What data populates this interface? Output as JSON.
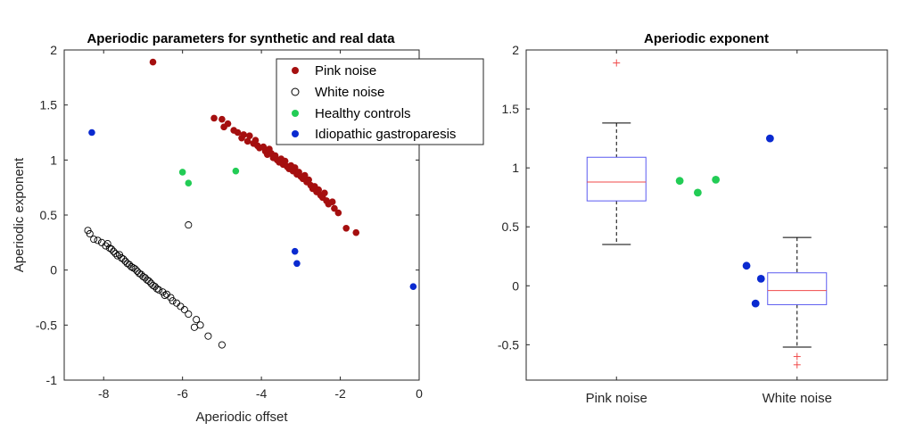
{
  "chart_data": [
    {
      "type": "scatter",
      "title": "Aperiodic parameters for synthetic and real data",
      "xlabel": "Aperiodic offset",
      "ylabel": "Aperiodic exponent",
      "xlim": [
        -9,
        0
      ],
      "ylim": [
        -1,
        2
      ],
      "xticks": [
        -8,
        -6,
        -4,
        -2,
        0
      ],
      "yticks": [
        -1,
        -0.5,
        0,
        0.5,
        1,
        1.5,
        2
      ],
      "xtick_labels": [
        "-8",
        "-6",
        "-4",
        "-2",
        "0"
      ],
      "ytick_labels": [
        "-1",
        "-0.5",
        "0",
        "0.5",
        "1",
        "1.5",
        "2"
      ],
      "grid": false,
      "legend_position": "top-right",
      "series": [
        {
          "name": "Pink noise",
          "color": "#a50f0f",
          "marker": "filled-circle",
          "points": [
            [
              -6.75,
              1.89
            ],
            [
              -5.2,
              1.38
            ],
            [
              -5.0,
              1.37
            ],
            [
              -4.95,
              1.3
            ],
            [
              -4.85,
              1.33
            ],
            [
              -4.7,
              1.27
            ],
            [
              -4.6,
              1.25
            ],
            [
              -4.5,
              1.2
            ],
            [
              -4.45,
              1.23
            ],
            [
              -4.35,
              1.17
            ],
            [
              -4.3,
              1.22
            ],
            [
              -4.2,
              1.15
            ],
            [
              -4.15,
              1.18
            ],
            [
              -4.1,
              1.13
            ],
            [
              -4.05,
              1.11
            ],
            [
              -3.95,
              1.12
            ],
            [
              -3.9,
              1.08
            ],
            [
              -3.85,
              1.05
            ],
            [
              -3.8,
              1.1
            ],
            [
              -3.75,
              1.06
            ],
            [
              -3.7,
              1.02
            ],
            [
              -3.65,
              1.04
            ],
            [
              -3.6,
              1.0
            ],
            [
              -3.55,
              0.98
            ],
            [
              -3.5,
              1.01
            ],
            [
              -3.45,
              0.96
            ],
            [
              -3.4,
              0.99
            ],
            [
              -3.35,
              0.94
            ],
            [
              -3.3,
              0.92
            ],
            [
              -3.25,
              0.95
            ],
            [
              -3.2,
              0.9
            ],
            [
              -3.15,
              0.93
            ],
            [
              -3.1,
              0.87
            ],
            [
              -3.05,
              0.89
            ],
            [
              -3.0,
              0.85
            ],
            [
              -2.95,
              0.83
            ],
            [
              -2.9,
              0.86
            ],
            [
              -2.85,
              0.8
            ],
            [
              -2.8,
              0.82
            ],
            [
              -2.75,
              0.77
            ],
            [
              -2.7,
              0.74
            ],
            [
              -2.65,
              0.76
            ],
            [
              -2.6,
              0.71
            ],
            [
              -2.55,
              0.73
            ],
            [
              -2.5,
              0.68
            ],
            [
              -2.45,
              0.66
            ],
            [
              -2.4,
              0.7
            ],
            [
              -2.35,
              0.63
            ],
            [
              -2.3,
              0.6
            ],
            [
              -2.2,
              0.62
            ],
            [
              -2.15,
              0.56
            ],
            [
              -2.05,
              0.52
            ],
            [
              -1.85,
              0.38
            ],
            [
              -1.6,
              0.34
            ]
          ]
        },
        {
          "name": "White noise",
          "color": "#000000",
          "marker": "open-circle",
          "points": [
            [
              -8.4,
              0.36
            ],
            [
              -8.35,
              0.33
            ],
            [
              -8.25,
              0.28
            ],
            [
              -8.15,
              0.27
            ],
            [
              -8.05,
              0.25
            ],
            [
              -7.95,
              0.22
            ],
            [
              -7.9,
              0.24
            ],
            [
              -7.85,
              0.2
            ],
            [
              -7.8,
              0.19
            ],
            [
              -7.75,
              0.17
            ],
            [
              -7.7,
              0.15
            ],
            [
              -7.65,
              0.13
            ],
            [
              -7.6,
              0.14
            ],
            [
              -7.55,
              0.11
            ],
            [
              -7.5,
              0.1
            ],
            [
              -7.45,
              0.08
            ],
            [
              -7.4,
              0.06
            ],
            [
              -7.35,
              0.05
            ],
            [
              -7.3,
              0.03
            ],
            [
              -7.25,
              0.02
            ],
            [
              -7.2,
              0.01
            ],
            [
              -7.15,
              -0.01
            ],
            [
              -7.1,
              -0.03
            ],
            [
              -7.05,
              -0.04
            ],
            [
              -7.0,
              -0.06
            ],
            [
              -6.95,
              -0.07
            ],
            [
              -6.9,
              -0.09
            ],
            [
              -6.85,
              -0.1
            ],
            [
              -6.8,
              -0.12
            ],
            [
              -6.75,
              -0.14
            ],
            [
              -6.7,
              -0.15
            ],
            [
              -6.65,
              -0.17
            ],
            [
              -6.6,
              -0.18
            ],
            [
              -6.5,
              -0.2
            ],
            [
              -6.45,
              -0.23
            ],
            [
              -6.4,
              -0.22
            ],
            [
              -6.3,
              -0.25
            ],
            [
              -6.25,
              -0.28
            ],
            [
              -6.15,
              -0.3
            ],
            [
              -6.05,
              -0.33
            ],
            [
              -5.95,
              -0.36
            ],
            [
              -5.85,
              -0.4
            ],
            [
              -5.65,
              -0.45
            ],
            [
              -5.55,
              -0.5
            ],
            [
              -5.7,
              -0.52
            ],
            [
              -5.35,
              -0.6
            ],
            [
              -5.0,
              -0.68
            ],
            [
              -5.85,
              0.41
            ]
          ]
        },
        {
          "name": "Healthy controls",
          "color": "#22cc55",
          "marker": "filled-circle",
          "points": [
            [
              -6.0,
              0.89
            ],
            [
              -5.85,
              0.79
            ],
            [
              -4.65,
              0.9
            ]
          ]
        },
        {
          "name": "Idiopathic gastroparesis",
          "color": "#0a2ad0",
          "marker": "filled-circle",
          "points": [
            [
              -8.3,
              1.25
            ],
            [
              -3.15,
              0.17
            ],
            [
              -3.1,
              0.06
            ],
            [
              -0.15,
              -0.15
            ]
          ]
        }
      ]
    },
    {
      "type": "box",
      "title": "Aperiodic exponent",
      "categories": [
        "Pink noise",
        "White noise"
      ],
      "ylim": [
        -0.8,
        2
      ],
      "yticks": [
        -0.5,
        0,
        0.5,
        1,
        1.5,
        2
      ],
      "ytick_labels": [
        "-0.5",
        "0",
        "0.5",
        "1",
        "1.5",
        "2"
      ],
      "box_color": "#5a5af0",
      "median_color": "#f04a4a",
      "whisker_color": "#000000",
      "outlier_color": "#f04a4a",
      "boxes": [
        {
          "category": "Pink noise",
          "q1": 0.72,
          "median": 0.88,
          "q3": 1.09,
          "whisker_low": 0.35,
          "whisker_high": 1.38,
          "outliers": [
            1.89
          ]
        },
        {
          "category": "White noise",
          "q1": -0.16,
          "median": -0.04,
          "q3": 0.11,
          "whisker_low": -0.52,
          "whisker_high": 0.41,
          "outliers": [
            -0.6,
            -0.67
          ]
        }
      ],
      "overlay_points": [
        {
          "group": "Healthy controls",
          "color": "#22cc55",
          "points": [
            [
              1.35,
              0.89
            ],
            [
              1.45,
              0.79
            ],
            [
              1.55,
              0.9
            ]
          ]
        },
        {
          "group": "Idiopathic gastroparesis",
          "color": "#0a2ad0",
          "points": [
            [
              1.72,
              0.17
            ],
            [
              1.77,
              -0.15
            ],
            [
              1.8,
              0.06
            ],
            [
              1.85,
              1.25
            ]
          ]
        }
      ],
      "xlim": [
        0.5,
        2.5
      ]
    }
  ]
}
